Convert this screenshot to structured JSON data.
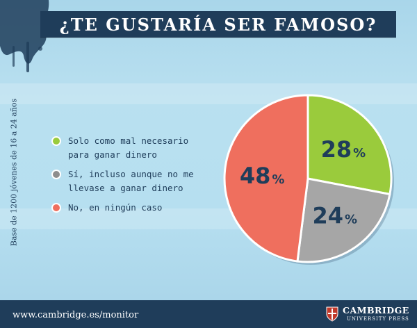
{
  "title": "¿TE GUSTARÍA SER FAMOSO?",
  "side_note": "Base de 1200 jóvenes de 16 a 24 años",
  "legend": [
    {
      "lines": [
        "Solo como mal necesario",
        "para ganar dinero"
      ],
      "color": "#9acb3c"
    },
    {
      "lines": [
        "Sí, incluso aunque no me",
        "llevase a ganar dinero"
      ],
      "color": "#8e8e8e"
    },
    {
      "lines": [
        "No, en ningún caso"
      ],
      "color": "#ef6f5e"
    }
  ],
  "chart_data": {
    "type": "pie",
    "title": "¿TE GUSTARÍA SER FAMOSO?",
    "slices": [
      {
        "label": "Solo como mal necesario para ganar dinero",
        "value": 28,
        "display": "28",
        "color": "#9acb3c"
      },
      {
        "label": "Sí, incluso aunque no me llevase a ganar dinero",
        "value": 24,
        "display": "24",
        "color": "#a6a6a6"
      },
      {
        "label": "No, en ningún caso",
        "value": 48,
        "display": "48",
        "color": "#ef6f5e"
      }
    ],
    "unit": "%"
  },
  "footer": {
    "url": "www.cambridge.es/monitor",
    "logo_line1": "CAMBRIDGE",
    "logo_line2": "UNIVERSITY PRESS"
  },
  "colors": {
    "navy": "#1f3d5a",
    "background": "#b6dff0",
    "label_text": "#1f3d5a"
  }
}
